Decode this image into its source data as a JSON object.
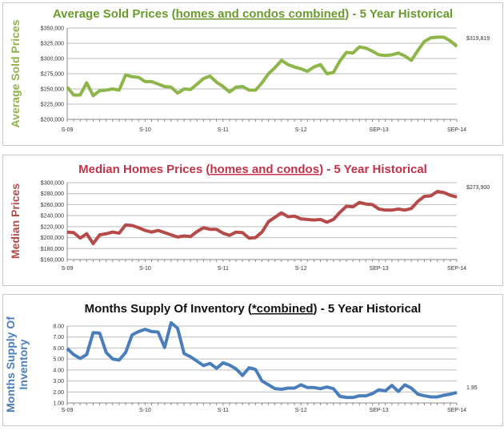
{
  "chart_data": [
    {
      "type": "line",
      "title_parts": [
        "Average Sold Prices (",
        "homes and condos combined",
        ") - 5 Year Historical"
      ],
      "ylabel": "Average Sold Prices",
      "color": "#8db548",
      "title_color": "#6a9a2e",
      "ylim": [
        200000,
        350000
      ],
      "yticks": [
        "$200,000",
        "$225,000",
        "$250,000",
        "$275,000",
        "$300,000",
        "$325,000",
        "$350,000"
      ],
      "xticks": [
        "S-09",
        "S-10",
        "S-11",
        "S-12",
        "SEP-13",
        "SEP-14"
      ],
      "end_label": "$319,819",
      "grid": true,
      "values": [
        253000,
        240000,
        240000,
        260000,
        239000,
        247000,
        248000,
        250000,
        248000,
        273000,
        270000,
        269000,
        262000,
        262000,
        258000,
        254000,
        253000,
        243000,
        250000,
        249000,
        258000,
        267000,
        271000,
        261000,
        254000,
        245000,
        253000,
        254000,
        248000,
        248000,
        260000,
        275000,
        285000,
        297000,
        290000,
        286000,
        283000,
        279000,
        286000,
        290000,
        275000,
        277000,
        296000,
        310000,
        309000,
        319000,
        317000,
        312000,
        306000,
        305000,
        306000,
        309000,
        304000,
        297000,
        313000,
        328000,
        334000,
        335000,
        335000,
        329000,
        319819
      ]
    },
    {
      "type": "line",
      "title_parts": [
        "Median Homes Prices (",
        "homes and condos",
        ") - 5 Year Historical"
      ],
      "ylabel": "Median Prices",
      "color": "#b54a48",
      "title_color": "#c0344a",
      "ylim": [
        160000,
        300000
      ],
      "yticks": [
        "$160,000",
        "$180,000",
        "$200,000",
        "$220,000",
        "$240,000",
        "$260,000",
        "$280,000",
        "$300,000"
      ],
      "xticks": [
        "S-09",
        "S-10",
        "S-11",
        "S-12",
        "SEP-13",
        "SEP-14"
      ],
      "end_label": "$273,900",
      "grid": true,
      "values": [
        210000,
        209000,
        199000,
        207000,
        189000,
        205000,
        207000,
        210000,
        208000,
        223000,
        222000,
        218000,
        213000,
        210000,
        213000,
        209000,
        205000,
        201000,
        203000,
        202000,
        211000,
        218000,
        215000,
        215000,
        208000,
        204000,
        210000,
        209000,
        199000,
        200000,
        210000,
        229000,
        237000,
        245000,
        238000,
        239000,
        234000,
        233000,
        232000,
        233000,
        228000,
        233000,
        246000,
        257000,
        256000,
        264000,
        261000,
        260000,
        252000,
        250000,
        250000,
        252000,
        250000,
        253000,
        266000,
        275000,
        276000,
        284000,
        282000,
        277000,
        273900
      ]
    },
    {
      "type": "line",
      "title_parts": [
        "Months Supply Of Inventory (",
        "*combined",
        ") - 5 Year Historical"
      ],
      "ylabel": "Months Supply Of Inventory",
      "color": "#4a7ebb",
      "title_color": "#111111",
      "ylim": [
        1,
        8
      ],
      "yticks": [
        "1.00",
        "2.00",
        "3.00",
        "4.00",
        "5.00",
        "6.00",
        "7.00",
        "8.00"
      ],
      "xticks": [
        "S-09",
        "S-10",
        "S-11",
        "S-12",
        "SEP-13",
        "SEP-14"
      ],
      "end_label": "1.95",
      "grid": true,
      "values": [
        5.95,
        5.4,
        5.05,
        5.4,
        7.4,
        7.35,
        5.6,
        5.0,
        4.9,
        5.6,
        7.2,
        7.5,
        7.7,
        7.5,
        7.45,
        6.05,
        8.3,
        7.8,
        5.5,
        5.2,
        4.8,
        4.4,
        4.6,
        4.15,
        4.65,
        4.45,
        4.1,
        3.5,
        4.2,
        4.05,
        3.0,
        2.65,
        2.3,
        2.25,
        2.35,
        2.35,
        2.65,
        2.4,
        2.4,
        2.3,
        2.45,
        2.3,
        1.6,
        1.5,
        1.5,
        1.65,
        1.65,
        1.85,
        2.2,
        2.1,
        2.6,
        2.05,
        2.65,
        2.35,
        1.8,
        1.65,
        1.55,
        1.55,
        1.7,
        1.8,
        1.95
      ]
    }
  ]
}
